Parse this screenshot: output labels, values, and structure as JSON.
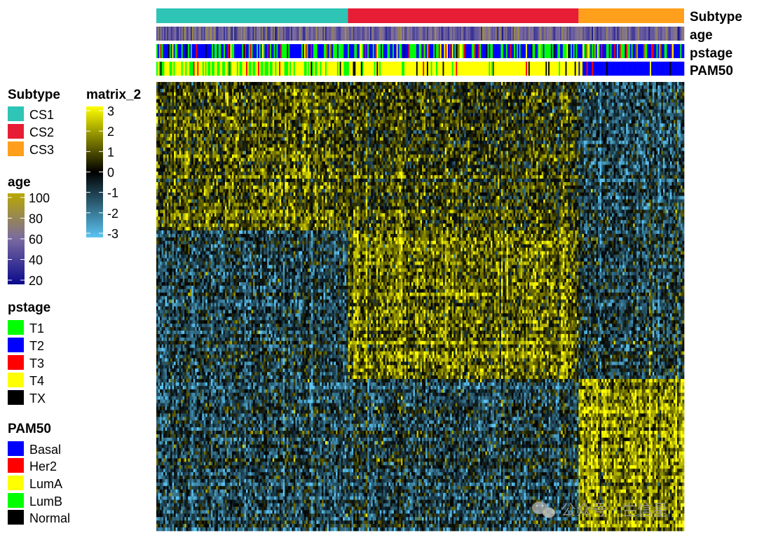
{
  "chart_data": {
    "type": "heatmap",
    "value_name": "matrix_2",
    "value_range": [
      -3,
      3
    ],
    "value_ticks": [
      "3",
      "2",
      "1",
      "0",
      "-1",
      "-2",
      "-3"
    ],
    "value_colors": {
      "low": "#5BC4F2",
      "mid": "#000000",
      "high": "#FFFF00"
    },
    "column_groups": [
      {
        "name": "CS1",
        "fraction": 0.363
      },
      {
        "name": "CS2",
        "fraction": 0.437
      },
      {
        "name": "CS3",
        "fraction": 0.2
      }
    ],
    "row_blocks": [
      {
        "fraction": 0.33,
        "mean_by_group": [
          0.8,
          0.4,
          -1.0
        ]
      },
      {
        "fraction": 0.33,
        "mean_by_group": [
          -0.9,
          1.1,
          -0.7
        ]
      },
      {
        "fraction": 0.34,
        "mean_by_group": [
          -0.8,
          -0.7,
          1.7
        ]
      }
    ],
    "annotations": [
      {
        "name": "Subtype",
        "kind": "discrete",
        "levels": [
          {
            "label": "CS1",
            "color": "#2EC4B6"
          },
          {
            "label": "CS2",
            "color": "#E71D36"
          },
          {
            "label": "CS3",
            "color": "#FF9F1C"
          }
        ]
      },
      {
        "name": "age",
        "kind": "continuous",
        "range": [
          20,
          100
        ],
        "ticks": [
          "100",
          "80",
          "60",
          "40",
          "20"
        ],
        "colors": {
          "low": "#0A0A8C",
          "mid": "#7A6AA0",
          "high": "#B8A800"
        }
      },
      {
        "name": "pstage",
        "kind": "discrete",
        "levels": [
          {
            "label": "T1",
            "color": "#00FF00"
          },
          {
            "label": "T2",
            "color": "#0000FF"
          },
          {
            "label": "T3",
            "color": "#FF0000"
          },
          {
            "label": "T4",
            "color": "#FFFF00"
          },
          {
            "label": "TX",
            "color": "#000000"
          }
        ]
      },
      {
        "name": "PAM50",
        "kind": "discrete",
        "levels": [
          {
            "label": "Basal",
            "color": "#0000FF"
          },
          {
            "label": "Her2",
            "color": "#FF0000"
          },
          {
            "label": "LumA",
            "color": "#FFFF00"
          },
          {
            "label": "LumB",
            "color": "#00FF00"
          },
          {
            "label": "Normal",
            "color": "#000000"
          }
        ]
      }
    ]
  },
  "watermark": {
    "text": "公众号 · 生信星",
    "icon": "wechat-icon"
  }
}
